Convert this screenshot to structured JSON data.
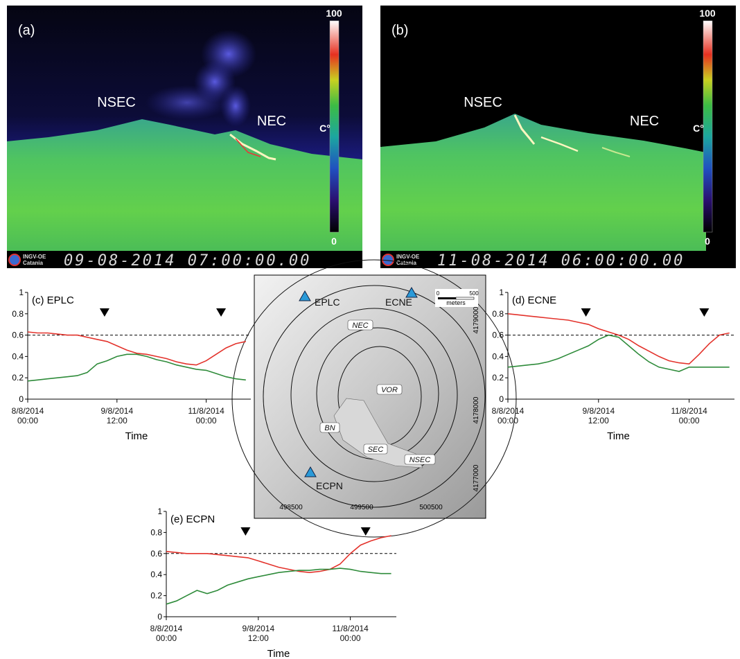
{
  "images": [
    {
      "label": "(a)",
      "annotations": [
        "NSEC",
        "NEC"
      ],
      "colorbar": {
        "max": 100,
        "min": 0,
        "unit": "C°"
      },
      "logo": [
        "INGV-OE",
        "Catania"
      ],
      "timestamp": "09-08-2014 07:00:00.00"
    },
    {
      "label": "(b)",
      "annotations": [
        "NSEC",
        "NEC"
      ],
      "colorbar": {
        "max": 100,
        "min": 0,
        "unit": "C°"
      },
      "logo": [
        "INGV-OE",
        "Catania"
      ],
      "timestamp": "11-08-2014 06:00:00.00"
    }
  ],
  "map": {
    "stations": [
      "EPLC",
      "ECNE",
      "ECPN"
    ],
    "craters": [
      "NEC",
      "VOR",
      "BN",
      "SEC",
      "NSEC"
    ],
    "scale": {
      "ticks": [
        0,
        500
      ],
      "unit": "meters"
    },
    "eastings": [
      498500,
      499500,
      500500
    ],
    "northings": [
      4179000,
      4178000,
      4177000
    ]
  },
  "chart_data": [
    {
      "type": "line",
      "title": "(c) EPLC",
      "x_label": "Time",
      "x": [
        "2014-08-08T00:00",
        "2014-08-08T04:00",
        "2014-08-08T08:00",
        "2014-08-08T12:00",
        "2014-08-08T16:00",
        "2014-08-08T20:00",
        "2014-08-09T00:00",
        "2014-08-09T04:00",
        "2014-08-09T08:00",
        "2014-08-09T12:00",
        "2014-08-09T16:00",
        "2014-08-09T20:00",
        "2014-08-10T00:00",
        "2014-08-10T04:00",
        "2014-08-10T08:00",
        "2014-08-10T12:00",
        "2014-08-10T16:00",
        "2014-08-10T20:00",
        "2014-08-11T00:00",
        "2014-08-11T04:00",
        "2014-08-11T08:00",
        "2014-08-11T12:00",
        "2014-08-11T16:00"
      ],
      "series": [
        {
          "color": "#e3322b",
          "values": [
            0.63,
            0.62,
            0.62,
            0.61,
            0.6,
            0.6,
            0.58,
            0.56,
            0.54,
            0.5,
            0.46,
            0.43,
            0.42,
            0.4,
            0.38,
            0.35,
            0.33,
            0.32,
            0.36,
            0.42,
            0.48,
            0.52,
            0.54
          ]
        },
        {
          "color": "#2e8b3a",
          "values": [
            0.17,
            0.18,
            0.19,
            0.2,
            0.21,
            0.22,
            0.25,
            0.33,
            0.36,
            0.4,
            0.42,
            0.42,
            0.4,
            0.37,
            0.35,
            0.32,
            0.3,
            0.28,
            0.27,
            0.24,
            0.21,
            0.19,
            0.18
          ]
        }
      ],
      "xlim": [
        "2014-08-08T00:00",
        "2014-08-11T18:00"
      ],
      "xticks": [
        {
          "value": "2014-08-08T00:00",
          "label": "8/8/2014 00:00"
        },
        {
          "value": "2014-08-09T12:00",
          "label": "9/8/2014 12:00"
        },
        {
          "value": "2014-08-11T00:00",
          "label": "11/8/2014 00:00"
        }
      ],
      "ylim": [
        0,
        1
      ],
      "yticks": [
        0,
        0.2,
        0.4,
        0.6,
        0.8,
        1
      ],
      "reference_line": 0.6,
      "markers": [
        "2014-08-09T07:00",
        "2014-08-11T06:00"
      ]
    },
    {
      "type": "line",
      "title": "(d) ECNE",
      "x_label": "Time",
      "x": [
        "2014-08-08T00:00",
        "2014-08-08T04:00",
        "2014-08-08T08:00",
        "2014-08-08T12:00",
        "2014-08-08T16:00",
        "2014-08-08T20:00",
        "2014-08-09T00:00",
        "2014-08-09T04:00",
        "2014-08-09T08:00",
        "2014-08-09T12:00",
        "2014-08-09T16:00",
        "2014-08-09T20:00",
        "2014-08-10T00:00",
        "2014-08-10T04:00",
        "2014-08-10T08:00",
        "2014-08-10T12:00",
        "2014-08-10T16:00",
        "2014-08-10T20:00",
        "2014-08-11T00:00",
        "2014-08-11T04:00",
        "2014-08-11T08:00",
        "2014-08-11T12:00",
        "2014-08-11T16:00"
      ],
      "series": [
        {
          "color": "#e3322b",
          "values": [
            0.8,
            0.79,
            0.78,
            0.77,
            0.76,
            0.75,
            0.74,
            0.72,
            0.7,
            0.66,
            0.63,
            0.6,
            0.56,
            0.5,
            0.45,
            0.4,
            0.36,
            0.34,
            0.33,
            0.42,
            0.52,
            0.6,
            0.62
          ]
        },
        {
          "color": "#2e8b3a",
          "values": [
            0.3,
            0.31,
            0.32,
            0.33,
            0.35,
            0.38,
            0.42,
            0.46,
            0.5,
            0.56,
            0.6,
            0.58,
            0.5,
            0.42,
            0.35,
            0.3,
            0.28,
            0.26,
            0.3,
            0.3,
            0.3,
            0.3,
            0.3
          ]
        }
      ],
      "xlim": [
        "2014-08-08T00:00",
        "2014-08-11T18:00"
      ],
      "xticks": [
        {
          "value": "2014-08-08T00:00",
          "label": "8/8/2014 00:00"
        },
        {
          "value": "2014-08-09T12:00",
          "label": "9/8/2014 12:00"
        },
        {
          "value": "2014-08-11T00:00",
          "label": "11/8/2014 00:00"
        }
      ],
      "ylim": [
        0,
        1
      ],
      "yticks": [
        0,
        0.2,
        0.4,
        0.6,
        0.8,
        1
      ],
      "reference_line": 0.6,
      "markers": [
        "2014-08-09T07:00",
        "2014-08-11T06:00"
      ]
    },
    {
      "type": "line",
      "title": "(e) ECPN",
      "x_label": "Time",
      "x": [
        "2014-08-08T00:00",
        "2014-08-08T04:00",
        "2014-08-08T08:00",
        "2014-08-08T12:00",
        "2014-08-08T16:00",
        "2014-08-08T20:00",
        "2014-08-09T00:00",
        "2014-08-09T04:00",
        "2014-08-09T08:00",
        "2014-08-09T12:00",
        "2014-08-09T16:00",
        "2014-08-09T20:00",
        "2014-08-10T00:00",
        "2014-08-10T04:00",
        "2014-08-10T08:00",
        "2014-08-10T12:00",
        "2014-08-10T16:00",
        "2014-08-10T20:00",
        "2014-08-11T00:00",
        "2014-08-11T04:00",
        "2014-08-11T08:00",
        "2014-08-11T12:00",
        "2014-08-11T16:00"
      ],
      "series": [
        {
          "color": "#e3322b",
          "values": [
            0.62,
            0.61,
            0.6,
            0.6,
            0.6,
            0.59,
            0.58,
            0.57,
            0.56,
            0.53,
            0.5,
            0.47,
            0.45,
            0.43,
            0.42,
            0.43,
            0.45,
            0.5,
            0.6,
            0.68,
            0.72,
            0.75,
            0.77
          ]
        },
        {
          "color": "#2e8b3a",
          "values": [
            0.12,
            0.15,
            0.2,
            0.25,
            0.22,
            0.25,
            0.3,
            0.33,
            0.36,
            0.38,
            0.4,
            0.42,
            0.43,
            0.44,
            0.44,
            0.45,
            0.45,
            0.46,
            0.45,
            0.43,
            0.42,
            0.41,
            0.41
          ]
        }
      ],
      "xlim": [
        "2014-08-08T00:00",
        "2014-08-11T18:00"
      ],
      "xticks": [
        {
          "value": "2014-08-08T00:00",
          "label": "8/8/2014 00:00"
        },
        {
          "value": "2014-08-09T12:00",
          "label": "9/8/2014 12:00"
        },
        {
          "value": "2014-08-11T00:00",
          "label": "11/8/2014 00:00"
        }
      ],
      "ylim": [
        0,
        1
      ],
      "yticks": [
        0,
        0.2,
        0.4,
        0.6,
        0.8,
        1
      ],
      "reference_line": 0.6,
      "markers": [
        "2014-08-09T07:00",
        "2014-08-11T06:00"
      ]
    }
  ]
}
